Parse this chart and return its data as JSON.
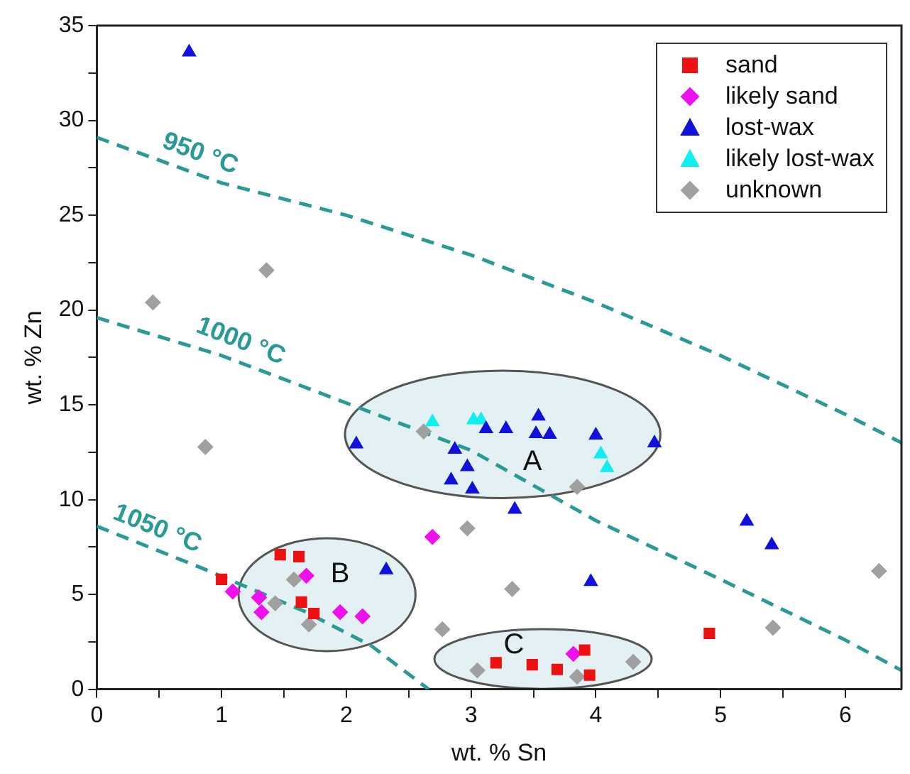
{
  "chart_data": {
    "type": "scatter",
    "xlabel": "wt. % Sn",
    "ylabel": "wt. % Zn",
    "xlim": [
      0,
      6.45
    ],
    "ylim": [
      0,
      35
    ],
    "xticks": [
      0,
      {
        "value": 0.5,
        "label": null
      },
      1,
      {
        "value": 1.5,
        "label": null
      },
      2,
      {
        "value": 2.5,
        "label": null
      },
      3,
      {
        "value": 3.5,
        "label": null
      },
      4,
      {
        "value": 4.5,
        "label": null
      },
      5,
      {
        "value": 5.5,
        "label": null
      },
      6
    ],
    "yticks": [
      0,
      {
        "value": 2.5,
        "label": null
      },
      5,
      {
        "value": 7.5,
        "label": null
      },
      10,
      {
        "value": 12.5,
        "label": null
      },
      15,
      {
        "value": 17.5,
        "label": null
      },
      20,
      {
        "value": 22.5,
        "label": null
      },
      25,
      {
        "value": 27.5,
        "label": null
      },
      30,
      {
        "value": 32.5,
        "label": null
      },
      35
    ],
    "grid": false,
    "legend": "top right",
    "series": [
      {
        "name": "sand",
        "color": "#ee1111",
        "marker": "square",
        "x": [
          1.0,
          1.47,
          1.62,
          1.64,
          1.74,
          3.2,
          3.49,
          3.69,
          3.91,
          3.95,
          4.91
        ],
        "values": [
          5.8,
          7.1,
          7.0,
          4.6,
          4.0,
          1.4,
          1.3,
          1.05,
          2.07,
          0.75,
          2.95
        ]
      },
      {
        "name": "likely sand",
        "color": "#ee11ee",
        "marker": "diamond",
        "x": [
          1.09,
          1.3,
          1.32,
          1.68,
          1.95,
          2.13,
          2.69,
          3.82
        ],
        "values": [
          5.16,
          4.84,
          4.07,
          5.99,
          4.07,
          3.85,
          8.04,
          1.87
        ]
      },
      {
        "name": "lost-wax",
        "color": "#1111dd",
        "marker": "triangle",
        "x": [
          0.74,
          2.08,
          2.87,
          2.97,
          2.84,
          3.01,
          2.32,
          3.12,
          3.28,
          3.54,
          3.52,
          3.63,
          4.0,
          4.47,
          3.35,
          3.96,
          5.21,
          5.41
        ],
        "values": [
          33.6,
          12.93,
          12.65,
          11.73,
          11.03,
          10.55,
          6.29,
          13.73,
          13.73,
          14.4,
          13.47,
          13.43,
          13.4,
          12.98,
          9.48,
          5.67,
          8.86,
          7.61
        ]
      },
      {
        "name": "likely lost-wax",
        "color": "#11eeee",
        "marker": "triangle",
        "x": [
          2.69,
          3.02,
          3.08,
          4.04,
          4.09
        ],
        "values": [
          14.1,
          14.2,
          14.2,
          12.4,
          11.68
        ]
      },
      {
        "name": "unknown",
        "color": "#a0a0a0",
        "marker": "diamond",
        "x": [
          0.45,
          1.36,
          0.87,
          2.62,
          2.97,
          1.58,
          1.43,
          1.7,
          2.77,
          3.05,
          3.85,
          3.33,
          3.85,
          4.3,
          5.42,
          6.27
        ],
        "values": [
          20.4,
          22.1,
          12.78,
          13.6,
          8.49,
          5.79,
          4.54,
          3.42,
          3.17,
          1.0,
          10.68,
          5.29,
          0.67,
          1.45,
          3.25,
          6.24
        ]
      },
      {
        "name": "950 °C",
        "type": "line",
        "color": "#2a9a96",
        "line_style": "dashed",
        "marker": "none",
        "x": [
          0,
          1,
          2,
          3,
          4,
          5,
          6,
          6.45
        ],
        "values": [
          29.1,
          26.7,
          25.0,
          22.9,
          20.4,
          17.6,
          14.5,
          13.0
        ]
      },
      {
        "name": "1000 °C",
        "type": "line",
        "color": "#2a9a96",
        "line_style": "dashed",
        "marker": "none",
        "x": [
          0,
          1,
          2,
          3,
          4,
          5,
          6,
          6.45
        ],
        "values": [
          19.6,
          17.6,
          15.1,
          12.6,
          8.9,
          5.8,
          2.6,
          1.0
        ]
      },
      {
        "name": "1050 °C",
        "type": "line",
        "color": "#2a9a96",
        "line_style": "dashed",
        "marker": "none",
        "x": [
          0,
          0.84,
          1.67,
          2.2,
          2.66
        ],
        "values": [
          8.6,
          6.4,
          4.1,
          2.3,
          0
        ]
      }
    ],
    "annotations": [
      "A",
      "B",
      "C"
    ]
  }
}
